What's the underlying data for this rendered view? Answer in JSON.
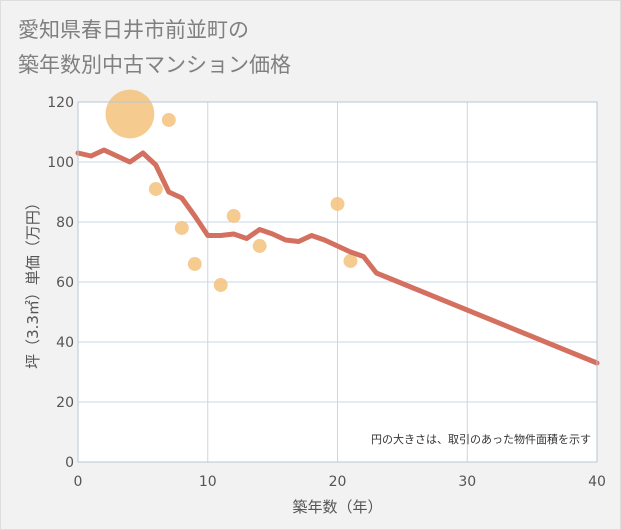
{
  "title_line1": "愛知県春日井市前並町の",
  "title_line2": "築年数別中古マンション価格",
  "chart_data": {
    "type": "scatter",
    "title": "愛知県春日井市前並町の築年数別中古マンション価格",
    "xlabel": "築年数（年）",
    "ylabel": "坪（3.3㎡）単価（万円）",
    "xlim": [
      0,
      40
    ],
    "ylim": [
      0,
      120
    ],
    "xticks": [
      "0",
      "10",
      "20",
      "30",
      "40"
    ],
    "yticks": [
      "0",
      "20",
      "40",
      "60",
      "80",
      "100",
      "120"
    ],
    "grid": true,
    "annotation": "円の大きさは、取引のあった物件面積を示す",
    "colors": {
      "bubble": "#f3c27d",
      "line": "#d4705f",
      "grid": "#c8d7e6",
      "plot_bg": "#ffffff"
    },
    "bubbles": [
      {
        "x": 4,
        "y": 116,
        "size": 4.2
      },
      {
        "x": 7,
        "y": 114,
        "size": 1.2
      },
      {
        "x": 6,
        "y": 91,
        "size": 1.2
      },
      {
        "x": 8,
        "y": 78,
        "size": 1.2
      },
      {
        "x": 9,
        "y": 66,
        "size": 1.2
      },
      {
        "x": 11,
        "y": 59,
        "size": 1.2
      },
      {
        "x": 12,
        "y": 82,
        "size": 1.2
      },
      {
        "x": 14,
        "y": 72,
        "size": 1.2
      },
      {
        "x": 20,
        "y": 86,
        "size": 1.2
      },
      {
        "x": 21,
        "y": 67,
        "size": 1.2
      }
    ],
    "trend_line": {
      "x": [
        0,
        1,
        2,
        3,
        4,
        5,
        6,
        7,
        8,
        9,
        10,
        11,
        12,
        13,
        14,
        15,
        16,
        17,
        18,
        19,
        20,
        21,
        22,
        23,
        40
      ],
      "y": [
        103,
        102,
        104,
        102,
        100,
        103,
        99,
        90,
        88,
        82,
        75.5,
        75.5,
        76,
        74.5,
        77.5,
        76,
        74,
        73.5,
        75.5,
        74,
        72,
        70,
        68.5,
        63,
        33
      ]
    }
  }
}
